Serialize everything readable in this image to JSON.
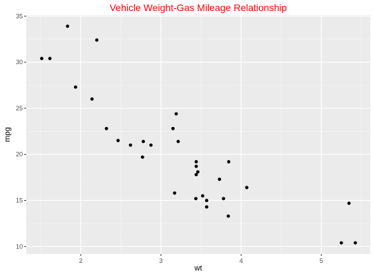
{
  "chart_data": {
    "type": "scatter",
    "title": "Vehicle Weight-Gas Mileage Relationship",
    "xlabel": "wt",
    "ylabel": "mpg",
    "xlim": [
      1.32,
      5.61
    ],
    "ylim": [
      9.2,
      35.1
    ],
    "xticks": [
      2,
      3,
      4,
      5
    ],
    "yticks": [
      10,
      15,
      20,
      25,
      30,
      35
    ],
    "grid": true,
    "legend": "none",
    "colors": {
      "panel": "#ebebeb",
      "grid_major": "#ffffff",
      "point": "#000000",
      "title": "#ff0000"
    },
    "points": [
      {
        "x": 2.62,
        "y": 21.0
      },
      {
        "x": 2.875,
        "y": 21.0
      },
      {
        "x": 2.32,
        "y": 22.8
      },
      {
        "x": 3.215,
        "y": 21.4
      },
      {
        "x": 3.44,
        "y": 18.7
      },
      {
        "x": 3.46,
        "y": 18.1
      },
      {
        "x": 3.57,
        "y": 14.3
      },
      {
        "x": 3.19,
        "y": 24.4
      },
      {
        "x": 3.15,
        "y": 22.8
      },
      {
        "x": 3.44,
        "y": 19.2
      },
      {
        "x": 3.44,
        "y": 17.8
      },
      {
        "x": 4.07,
        "y": 16.4
      },
      {
        "x": 3.73,
        "y": 17.3
      },
      {
        "x": 3.78,
        "y": 15.2
      },
      {
        "x": 5.25,
        "y": 10.4
      },
      {
        "x": 5.424,
        "y": 10.4
      },
      {
        "x": 5.345,
        "y": 14.7
      },
      {
        "x": 2.2,
        "y": 32.4
      },
      {
        "x": 1.615,
        "y": 30.4
      },
      {
        "x": 1.835,
        "y": 33.9
      },
      {
        "x": 2.465,
        "y": 21.5
      },
      {
        "x": 3.52,
        "y": 15.5
      },
      {
        "x": 3.435,
        "y": 15.2
      },
      {
        "x": 3.84,
        "y": 13.3
      },
      {
        "x": 3.845,
        "y": 19.2
      },
      {
        "x": 1.935,
        "y": 27.3
      },
      {
        "x": 2.14,
        "y": 26.0
      },
      {
        "x": 1.513,
        "y": 30.4
      },
      {
        "x": 3.17,
        "y": 15.8
      },
      {
        "x": 2.77,
        "y": 19.7
      },
      {
        "x": 3.57,
        "y": 15.0
      },
      {
        "x": 2.78,
        "y": 21.4
      }
    ]
  }
}
